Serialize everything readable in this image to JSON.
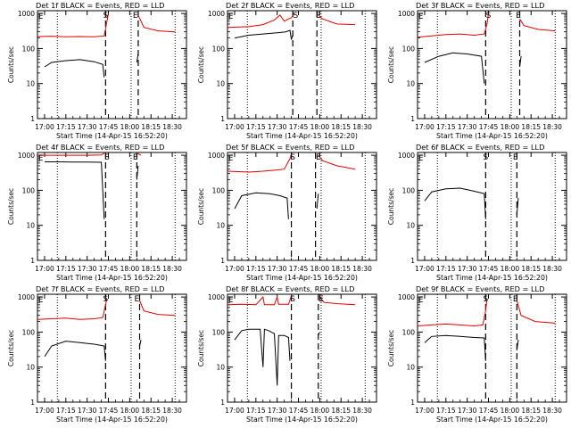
{
  "colors": {
    "events": "#000000",
    "lld": "#e00000",
    "axes": "#000000"
  },
  "shared": {
    "ylabel": "Counts/sec",
    "xlabel": "Start Time (14-Apr-15 16:52:20)",
    "title_suffix": "BLACK = Events, RED = LLD",
    "x_ticks": [
      "17:00",
      "17:15",
      "17:30",
      "17:45",
      "18:00",
      "18:15",
      "18:30"
    ],
    "y_ticks": [
      "1",
      "10",
      "100",
      "1000"
    ],
    "marker_S": "S",
    "marker_E": "E",
    "corner_E": "E"
  },
  "chart_data": [
    {
      "type": "line",
      "title": "Det 1f BLACK = Events, RED = LLD",
      "det": "Det 1f",
      "yscale": "log",
      "ylim": [
        1,
        1200
      ],
      "x_range_min": [
        -5,
        100
      ],
      "markers_min": {
        "S": 43,
        "E": 64
      },
      "dotted_min": [
        9,
        61,
        92
      ],
      "dashed_min": [
        43,
        66
      ],
      "series": [
        {
          "name": "Events",
          "segments": [
            [
              [
                0,
                30
              ],
              [
                5,
                40
              ],
              [
                15,
                45
              ],
              [
                25,
                48
              ],
              [
                35,
                42
              ],
              [
                41,
                35
              ],
              [
                42,
                15
              ]
            ],
            [
              [
                65,
                40
              ],
              [
                66,
                70
              ]
            ]
          ]
        },
        {
          "name": "LLD",
          "segments": [
            [
              [
                -5,
                220
              ],
              [
                5,
                225
              ],
              [
                15,
                215
              ],
              [
                25,
                220
              ],
              [
                35,
                215
              ],
              [
                42,
                230
              ],
              [
                44,
                600
              ],
              [
                45,
                1000
              ]
            ],
            [
              [
                66,
                900
              ],
              [
                70,
                400
              ],
              [
                80,
                320
              ],
              [
                92,
                300
              ]
            ]
          ]
        }
      ]
    },
    {
      "type": "line",
      "title": "Det 2f BLACK = Events, RED = LLD",
      "det": "Det 2f",
      "yscale": "log",
      "ylim": [
        1,
        1200
      ],
      "x_range_min": [
        -5,
        100
      ],
      "markers_min": {
        "S": 43,
        "E": 59
      },
      "dotted_min": [
        9,
        61,
        92
      ],
      "dashed_min": [
        41,
        58
      ],
      "series": [
        {
          "name": "Events",
          "segments": [
            [
              [
                0,
                200
              ],
              [
                10,
                240
              ],
              [
                20,
                260
              ],
              [
                30,
                280
              ],
              [
                36,
                300
              ],
              [
                39,
                330
              ],
              [
                40,
                180
              ],
              [
                41,
                250
              ]
            ]
          ]
        },
        {
          "name": "LLD",
          "segments": [
            [
              [
                -5,
                400
              ],
              [
                10,
                420
              ],
              [
                20,
                480
              ],
              [
                28,
                650
              ],
              [
                32,
                900
              ],
              [
                35,
                600
              ],
              [
                38,
                700
              ],
              [
                40,
                750
              ],
              [
                42,
                1000
              ]
            ],
            [
              [
                59,
                900
              ],
              [
                62,
                700
              ],
              [
                72,
                500
              ],
              [
                85,
                480
              ]
            ]
          ]
        }
      ]
    },
    {
      "type": "line",
      "title": "Det 3f BLACK = Events, RED = LLD",
      "det": "Det 3f",
      "yscale": "log",
      "ylim": [
        1,
        1200
      ],
      "x_range_min": [
        -5,
        100
      ],
      "markers_min": {
        "S": 45,
        "E": 66
      },
      "dotted_min": [
        9,
        61,
        92
      ],
      "dashed_min": [
        43,
        67
      ],
      "series": [
        {
          "name": "Events",
          "segments": [
            [
              [
                0,
                40
              ],
              [
                10,
                60
              ],
              [
                20,
                75
              ],
              [
                30,
                70
              ],
              [
                40,
                60
              ],
              [
                42,
                10
              ]
            ],
            [
              [
                67,
                30
              ],
              [
                68,
                60
              ]
            ]
          ]
        },
        {
          "name": "LLD",
          "segments": [
            [
              [
                -5,
                210
              ],
              [
                5,
                230
              ],
              [
                15,
                250
              ],
              [
                25,
                260
              ],
              [
                35,
                240
              ],
              [
                42,
                260
              ],
              [
                44,
                500
              ],
              [
                45,
                1000
              ]
            ],
            [
              [
                67,
                700
              ],
              [
                70,
                450
              ],
              [
                80,
                350
              ],
              [
                92,
                320
              ]
            ]
          ]
        }
      ]
    },
    {
      "type": "line",
      "title": "Det 4f BLACK = Events, RED = LLD",
      "det": "Det 4f",
      "yscale": "log",
      "ylim": [
        1,
        1200
      ],
      "x_range_min": [
        -5,
        100
      ],
      "markers_min": {
        "S": 44,
        "E": 64
      },
      "dotted_min": [
        9,
        61,
        92
      ],
      "dashed_min": [
        43,
        65
      ],
      "series": [
        {
          "name": "Events",
          "segments": [
            [
              [
                0,
                650
              ],
              [
                10,
                650
              ],
              [
                20,
                640
              ],
              [
                30,
                640
              ],
              [
                40,
                630
              ],
              [
                42,
                15
              ]
            ],
            [
              [
                65,
                200
              ],
              [
                66,
                500
              ]
            ]
          ]
        },
        {
          "name": "LLD",
          "segments": [
            [
              [
                -5,
                1000
              ],
              [
                10,
                1000
              ],
              [
                20,
                1000
              ],
              [
                30,
                1000
              ],
              [
                40,
                1020
              ],
              [
                43,
                1200
              ]
            ],
            [
              [
                65,
                1200
              ],
              [
                66,
                1100
              ],
              [
                68,
                1000
              ]
            ]
          ]
        }
      ]
    },
    {
      "type": "line",
      "title": "Det 5f BLACK = Events, RED = LLD",
      "det": "Det 5f",
      "yscale": "log",
      "ylim": [
        1,
        1200
      ],
      "x_range_min": [
        -5,
        100
      ],
      "markers_min": {
        "S": 41,
        "E": 59
      },
      "dotted_min": [
        9,
        61,
        92
      ],
      "dashed_min": [
        40,
        57
      ],
      "series": [
        {
          "name": "Events",
          "segments": [
            [
              [
                0,
                30
              ],
              [
                5,
                70
              ],
              [
                15,
                85
              ],
              [
                25,
                80
              ],
              [
                32,
                70
              ],
              [
                37,
                60
              ],
              [
                38,
                15
              ]
            ],
            [
              [
                58,
                30
              ],
              [
                59,
                80
              ]
            ]
          ]
        },
        {
          "name": "LLD",
          "segments": [
            [
              [
                -5,
                350
              ],
              [
                10,
                330
              ],
              [
                20,
                350
              ],
              [
                30,
                380
              ],
              [
                35,
                400
              ],
              [
                39,
                800
              ],
              [
                40,
                1100
              ]
            ],
            [
              [
                59,
                1000
              ],
              [
                62,
                700
              ],
              [
                72,
                500
              ],
              [
                85,
                400
              ]
            ]
          ]
        }
      ]
    },
    {
      "type": "line",
      "title": "Det 6f BLACK = Events, RED = LLD",
      "det": "Det 6f",
      "yscale": "log",
      "ylim": [
        1,
        1200
      ],
      "x_range_min": [
        -5,
        100
      ],
      "markers_min": {
        "S": 43,
        "E": 64
      },
      "dotted_min": [
        9,
        61,
        92
      ],
      "dashed_min": [
        43,
        65
      ],
      "series": [
        {
          "name": "Events",
          "segments": [
            [
              [
                0,
                50
              ],
              [
                5,
                90
              ],
              [
                15,
                110
              ],
              [
                25,
                115
              ],
              [
                32,
                100
              ],
              [
                42,
                80
              ],
              [
                43,
                15
              ]
            ],
            [
              [
                65,
                20
              ],
              [
                66,
                60
              ]
            ]
          ]
        },
        {
          "name": "LLD",
          "segments": []
        }
      ]
    },
    {
      "type": "line",
      "title": "Det 7f BLACK = Events, RED = LLD",
      "det": "Det 7f",
      "yscale": "log",
      "ylim": [
        1,
        1200
      ],
      "x_range_min": [
        -5,
        100
      ],
      "markers_min": {
        "S": 43,
        "E": 65
      },
      "dotted_min": [
        9,
        61,
        92
      ],
      "dashed_min": [
        43,
        67
      ],
      "series": [
        {
          "name": "Events",
          "segments": [
            [
              [
                0,
                20
              ],
              [
                5,
                40
              ],
              [
                15,
                55
              ],
              [
                25,
                50
              ],
              [
                35,
                45
              ],
              [
                42,
                40
              ],
              [
                43,
                15
              ]
            ],
            [
              [
                67,
                40
              ],
              [
                68,
                60
              ]
            ]
          ]
        },
        {
          "name": "LLD",
          "segments": [
            [
              [
                -5,
                230
              ],
              [
                5,
                240
              ],
              [
                15,
                250
              ],
              [
                25,
                230
              ],
              [
                35,
                240
              ],
              [
                41,
                260
              ],
              [
                43,
                600
              ],
              [
                44,
                900
              ]
            ],
            [
              [
                67,
                800
              ],
              [
                70,
                400
              ],
              [
                80,
                320
              ],
              [
                92,
                300
              ]
            ]
          ]
        }
      ]
    },
    {
      "type": "line",
      "title": "Det 8f BLACK = Events, RED = LLD",
      "det": "Det 8f",
      "yscale": "log",
      "ylim": [
        1,
        1200
      ],
      "x_range_min": [
        -5,
        100
      ],
      "markers_min": {
        "S": 41,
        "E": 61
      },
      "dotted_min": [
        9,
        61,
        92
      ],
      "dashed_min": [
        40,
        59
      ],
      "series": [
        {
          "name": "Events",
          "segments": [
            [
              [
                0,
                60
              ],
              [
                5,
                110
              ],
              [
                10,
                120
              ],
              [
                18,
                120
              ],
              [
                20,
                10
              ],
              [
                21,
                120
              ],
              [
                24,
                110
              ],
              [
                28,
                90
              ],
              [
                30,
                3
              ],
              [
                31,
                80
              ],
              [
                35,
                80
              ],
              [
                38,
                70
              ],
              [
                39,
                15
              ]
            ],
            [
              [
                59,
                80
              ],
              [
                60,
                100
              ]
            ]
          ]
        },
        {
          "name": "LLD",
          "segments": [
            [
              [
                -5,
                600
              ],
              [
                5,
                620
              ],
              [
                15,
                600
              ],
              [
                20,
                1000
              ],
              [
                21,
                600
              ],
              [
                28,
                600
              ],
              [
                30,
                1000
              ],
              [
                31,
                620
              ],
              [
                38,
                620
              ],
              [
                40,
                1100
              ]
            ],
            [
              [
                60,
                1000
              ],
              [
                63,
                700
              ],
              [
                72,
                650
              ],
              [
                85,
                600
              ]
            ]
          ]
        }
      ]
    },
    {
      "type": "line",
      "title": "Det 9f BLACK = Events, RED = LLD",
      "det": "Det 9f",
      "yscale": "log",
      "ylim": [
        1,
        1200
      ],
      "x_range_min": [
        -5,
        100
      ],
      "markers_min": {
        "S": 43,
        "E": 64
      },
      "dotted_min": [
        9,
        61,
        92
      ],
      "dashed_min": [
        43,
        65
      ],
      "series": [
        {
          "name": "Events",
          "segments": [
            [
              [
                0,
                50
              ],
              [
                5,
                75
              ],
              [
                15,
                80
              ],
              [
                25,
                75
              ],
              [
                35,
                70
              ],
              [
                42,
                68
              ],
              [
                43,
                15
              ]
            ],
            [
              [
                65,
                30
              ],
              [
                66,
                60
              ]
            ]
          ]
        },
        {
          "name": "LLD",
          "segments": [
            [
              [
                -5,
                150
              ],
              [
                5,
                160
              ],
              [
                15,
                170
              ],
              [
                25,
                160
              ],
              [
                35,
                150
              ],
              [
                41,
                160
              ],
              [
                43,
                400
              ],
              [
                44,
                900
              ]
            ],
            [
              [
                65,
                800
              ],
              [
                68,
                300
              ],
              [
                78,
                200
              ],
              [
                92,
                180
              ]
            ]
          ]
        }
      ]
    }
  ]
}
